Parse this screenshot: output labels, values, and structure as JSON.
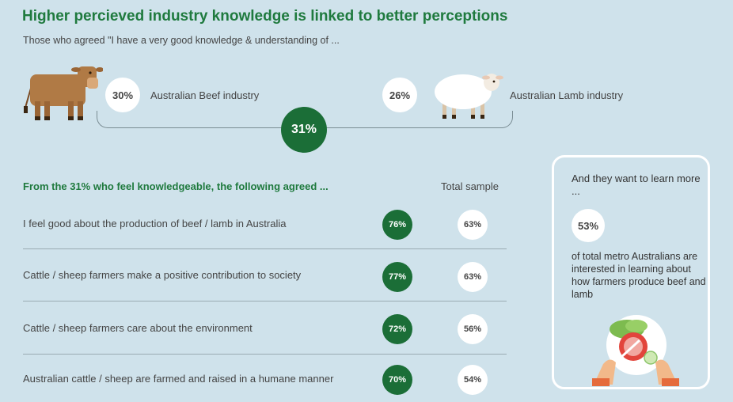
{
  "header": {
    "title": "Higher percieved industry knowledge is linked to better perceptions",
    "subtitle": "Those who agreed \"I have a very good knowledge & understanding of ..."
  },
  "industries": [
    {
      "percent": "30%",
      "label": "Australian Beef industry",
      "icon": "cow-icon"
    },
    {
      "percent": "26%",
      "label": "Australian Lamb industry",
      "icon": "sheep-icon"
    }
  ],
  "combined_percent": "31%",
  "table": {
    "header_left": "From the 31% who feel knowledgeable, the following agreed ...",
    "header_right": "Total sample",
    "rows": [
      {
        "statement": "I feel good about the production of beef / lamb in Australia",
        "knowledgeable": "76%",
        "total": "63%"
      },
      {
        "statement": "Cattle / sheep farmers make a positive contribution to society",
        "knowledgeable": "77%",
        "total": "63%"
      },
      {
        "statement": "Cattle / sheep farmers care about the environment",
        "knowledgeable": "72%",
        "total": "56%"
      },
      {
        "statement": "Australian cattle / sheep are farmed and raised in a humane manner",
        "knowledgeable": "70%",
        "total": "54%"
      }
    ]
  },
  "sidebar": {
    "heading": "And they want to learn more ...",
    "percent": "53%",
    "body": "of total metro Australians are interested in learning about how farmers produce beef and lamb",
    "icon": "meal-plate-icon"
  },
  "colors": {
    "background": "#cfe2eb",
    "accent_green": "#1b6e37",
    "title_green": "#1f7a3e"
  }
}
